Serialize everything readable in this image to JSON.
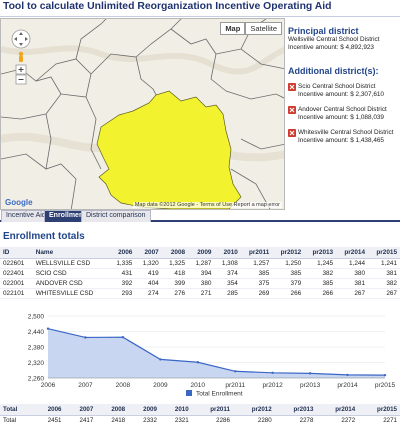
{
  "header": {
    "title": "Tool to calculate Unlimited Reorganization Incentive Operating Aid"
  },
  "map": {
    "buttons": {
      "map": "Map",
      "satellite": "Satellite"
    },
    "logo": "Google",
    "footer": "Map data ©2012 Google - Terms of Use  Report a map error",
    "highlight_color": "#f2f22e"
  },
  "principal": {
    "heading": "Principal district",
    "name": "Wellsville Central School District",
    "aid": "Incentive amount: $ 4,892,923"
  },
  "additional": {
    "heading": "Additional district(s):",
    "items": [
      {
        "name": "Scio Central School District",
        "aid": "Incentive amount: $ 2,307,610"
      },
      {
        "name": "Andover Central School District",
        "aid": "Incentive amount: $ 1,088,039"
      },
      {
        "name": "Whitesville Central School District",
        "aid": "Incentive amount: $ 1,438,465"
      }
    ]
  },
  "tabs": [
    {
      "label": "Incentive Aid",
      "active": false
    },
    {
      "label": "Enrollment",
      "active": true
    },
    {
      "label": "District comparison",
      "active": false
    }
  ],
  "section_title": "Enrollment totals",
  "enrollment": {
    "headers": [
      "ID",
      "Name",
      "2006",
      "2007",
      "2008",
      "2009",
      "2010",
      "pr2011",
      "pr2012",
      "pr2013",
      "pr2014",
      "pr2015"
    ],
    "rows": [
      [
        "022601",
        "WELLSVILLE CSD",
        "1,335",
        "1,320",
        "1,325",
        "1,287",
        "1,308",
        "1,257",
        "1,250",
        "1,245",
        "1,244",
        "1,241"
      ],
      [
        "022401",
        "SCIO CSD",
        "431",
        "419",
        "418",
        "394",
        "374",
        "385",
        "385",
        "382",
        "380",
        "381"
      ],
      [
        "022001",
        "ANDOVER CSD",
        "392",
        "404",
        "399",
        "380",
        "354",
        "375",
        "379",
        "385",
        "381",
        "382"
      ],
      [
        "022101",
        "WHITESVILLE CSD",
        "293",
        "274",
        "276",
        "271",
        "285",
        "269",
        "266",
        "266",
        "267",
        "267"
      ]
    ]
  },
  "chart_data": {
    "type": "area",
    "x": [
      "2006",
      "2007",
      "2008",
      "2009",
      "2010",
      "pr2011",
      "pr2012",
      "pr2013",
      "pr2014",
      "pr2015"
    ],
    "series": [
      {
        "name": "Total Enrollment",
        "values": [
          2451,
          2417,
          2418,
          2332,
          2321,
          2286,
          2280,
          2278,
          2272,
          2271
        ],
        "color": "#3a66c4"
      }
    ],
    "yticks": [
      "2,500",
      "2,440",
      "2,380",
      "2,320",
      "2,260"
    ],
    "ylim": [
      2260,
      2500
    ],
    "grid": true,
    "legend": "bottom"
  },
  "totals": {
    "headers": [
      "Total",
      "2006",
      "2007",
      "2008",
      "2009",
      "2010",
      "pr2011",
      "pr2012",
      "pr2013",
      "pr2014",
      "pr2015"
    ],
    "row": [
      "Total",
      "2451",
      "2417",
      "2418",
      "2332",
      "2321",
      "2286",
      "2280",
      "2278",
      "2272",
      "2271"
    ]
  }
}
